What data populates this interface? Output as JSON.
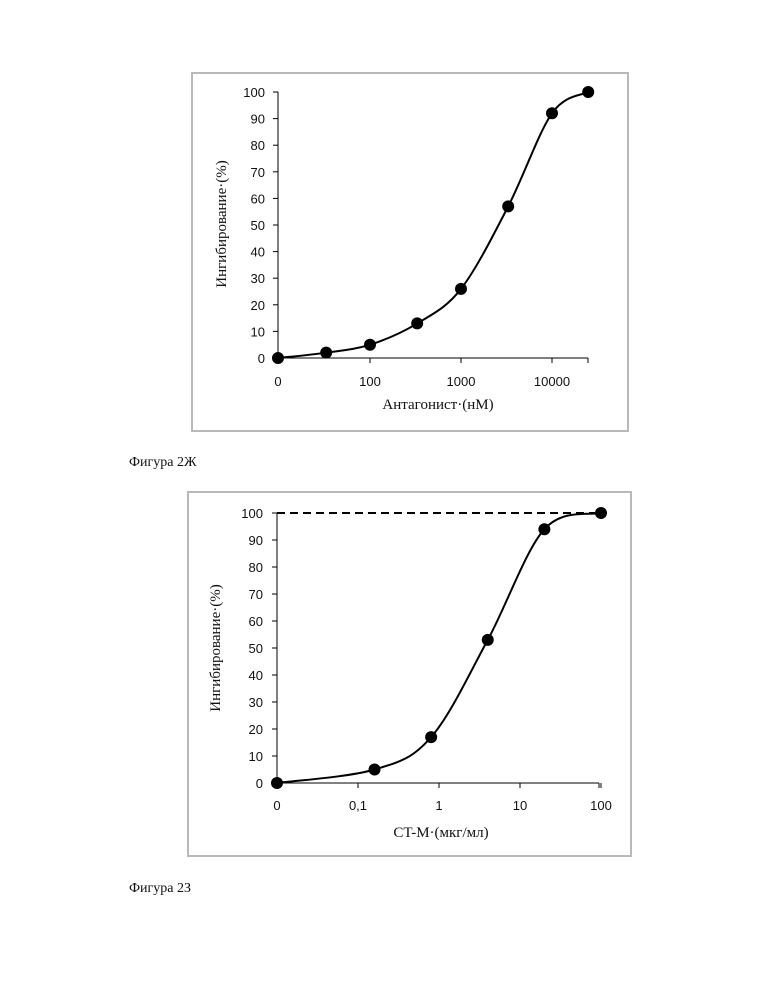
{
  "captions": {
    "figure_1": "Фигура 2Ж",
    "figure_2": "Фигура 2З"
  },
  "chart_data": [
    {
      "type": "line",
      "xlabel": "Антагонист·(нМ)",
      "ylabel": "Ингибирование·(%)",
      "x_scale": "log",
      "x_tick_labels": [
        "0",
        "100",
        "1000",
        "10000"
      ],
      "y_tick_labels": [
        "0",
        "10",
        "20",
        "30",
        "40",
        "50",
        "60",
        "70",
        "80",
        "90",
        "100"
      ],
      "ylim": [
        0,
        100
      ],
      "grid": false,
      "series": [
        {
          "x": [
            0,
            33,
            100,
            330,
            1000,
            3300,
            10000,
            25000
          ],
          "y": [
            0,
            2,
            5,
            13,
            26,
            57,
            92,
            100
          ],
          "marker": "circle",
          "line": "smooth"
        }
      ]
    },
    {
      "type": "line",
      "xlabel": "CT-M·(мкг/мл)",
      "ylabel": "Ингибирование·(%)",
      "x_scale": "log",
      "x_tick_labels": [
        "0",
        "0,1",
        "1",
        "10",
        "100"
      ],
      "y_tick_labels": [
        "0",
        "10",
        "20",
        "30",
        "40",
        "50",
        "60",
        "70",
        "80",
        "90",
        "100"
      ],
      "ylim": [
        0,
        100
      ],
      "grid": false,
      "reference_line": {
        "y": 100,
        "style": "dashed"
      },
      "series": [
        {
          "x": [
            0,
            0.16,
            0.8,
            4,
            20,
            100
          ],
          "y": [
            0,
            5,
            17,
            53,
            94,
            100
          ],
          "marker": "circle",
          "line": "smooth"
        }
      ]
    }
  ]
}
